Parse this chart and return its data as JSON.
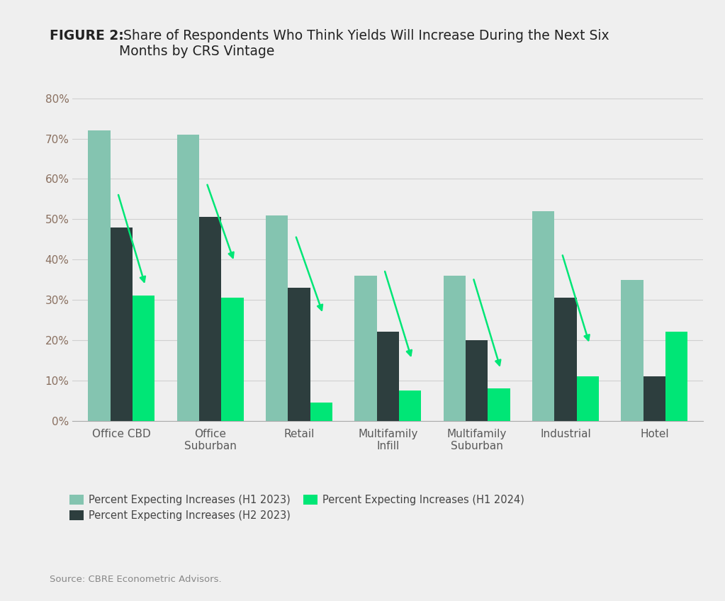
{
  "title_bold": "FIGURE 2:",
  "title_rest": " Share of Respondents Who Think Yields Will Increase During the Next Six\nMonths by CRS Vintage",
  "categories": [
    "Office CBD",
    "Office\nSuburban",
    "Retail",
    "Multifamily\nInfill",
    "Multifamily\nSuburban",
    "Industrial",
    "Hotel"
  ],
  "series": {
    "H1 2023": [
      0.72,
      0.71,
      0.51,
      0.36,
      0.36,
      0.52,
      0.35
    ],
    "H2 2023": [
      0.48,
      0.505,
      0.33,
      0.22,
      0.2,
      0.305,
      0.11
    ],
    "H1 2024": [
      0.31,
      0.305,
      0.045,
      0.075,
      0.08,
      0.11,
      0.22
    ]
  },
  "colors": {
    "H1 2023": "#84c4b0",
    "H2 2023": "#2d3e3e",
    "H1 2024": "#00e676"
  },
  "arrow_color": "#00e676",
  "legend_labels": [
    "Percent Expecting Increases (H1 2023)",
    "Percent Expecting Increases (H2 2023)",
    "Percent Expecting Increases (H1 2024)"
  ],
  "ylim": [
    0,
    0.85
  ],
  "yticks": [
    0.0,
    0.1,
    0.2,
    0.3,
    0.4,
    0.5,
    0.6,
    0.7,
    0.8
  ],
  "source_text": "Source: CBRE Econometric Advisors.",
  "background_color": "#efefef",
  "plot_background": "#efefef",
  "grid_color": "#d0d0d0",
  "bar_width": 0.25,
  "arrow_data": [
    [
      0,
      -0.04,
      0.565,
      0.27,
      0.335
    ],
    [
      1,
      -0.04,
      0.59,
      0.27,
      0.395
    ],
    [
      2,
      -0.04,
      0.46,
      0.27,
      0.265
    ],
    [
      3,
      -0.04,
      0.375,
      0.27,
      0.152
    ],
    [
      4,
      -0.04,
      0.355,
      0.27,
      0.128
    ],
    [
      5,
      -0.04,
      0.415,
      0.27,
      0.19
    ]
  ]
}
